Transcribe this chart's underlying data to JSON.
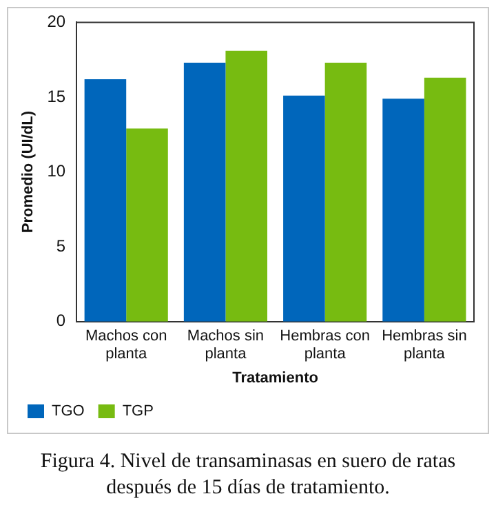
{
  "chart_data": {
    "type": "bar",
    "xlabel": "Tratamiento",
    "ylabel": "Promedio (UI/dL)",
    "categories": [
      "Machos con planta",
      "Machos sin planta",
      "Hembras con planta",
      "Hembras sin planta"
    ],
    "series": [
      {
        "name": "TGO",
        "color": "#0066bb",
        "values": [
          16.2,
          17.3,
          15.1,
          14.9
        ]
      },
      {
        "name": "TGP",
        "color": "#77bb11",
        "values": [
          12.9,
          18.1,
          17.3,
          16.3
        ]
      }
    ],
    "ylim": [
      0,
      20
    ],
    "yticks": [
      0,
      5,
      10,
      15,
      20
    ],
    "grid": false,
    "legend": "bottom left",
    "annotations": [
      "Figura 4. Nivel de transaminasas en suero de ratas después de 15 días de tratamiento."
    ]
  }
}
